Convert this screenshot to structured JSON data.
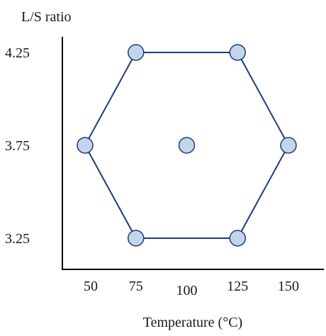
{
  "chart_data": {
    "type": "scatter",
    "title": "",
    "xlabel": "Temperature (°C)",
    "ylabel": "L/S ratio",
    "xlim": [
      38,
      165
    ],
    "ylim": [
      3.08,
      4.42
    ],
    "x_ticks": [
      50,
      75,
      100,
      125,
      150
    ],
    "x_tick_labels": [
      "50",
      "75",
      "100",
      "125",
      "150"
    ],
    "y_ticks": [
      3.25,
      3.75,
      4.25
    ],
    "y_tick_labels": [
      "3.25",
      "3.75",
      "4.25"
    ],
    "grid": false,
    "legend": "none",
    "points": [
      {
        "x": 75,
        "y": 4.25
      },
      {
        "x": 125,
        "y": 4.25
      },
      {
        "x": 150,
        "y": 3.75
      },
      {
        "x": 125,
        "y": 3.25
      },
      {
        "x": 75,
        "y": 3.25
      },
      {
        "x": 50,
        "y": 3.75
      },
      {
        "x": 100,
        "y": 3.75
      }
    ],
    "hexagon_order": [
      0,
      1,
      2,
      3,
      4,
      5
    ],
    "colors": {
      "line": "#1f3a7a",
      "marker_fill": "#c3d5ea",
      "marker_edge": "#1f3a7a"
    }
  }
}
